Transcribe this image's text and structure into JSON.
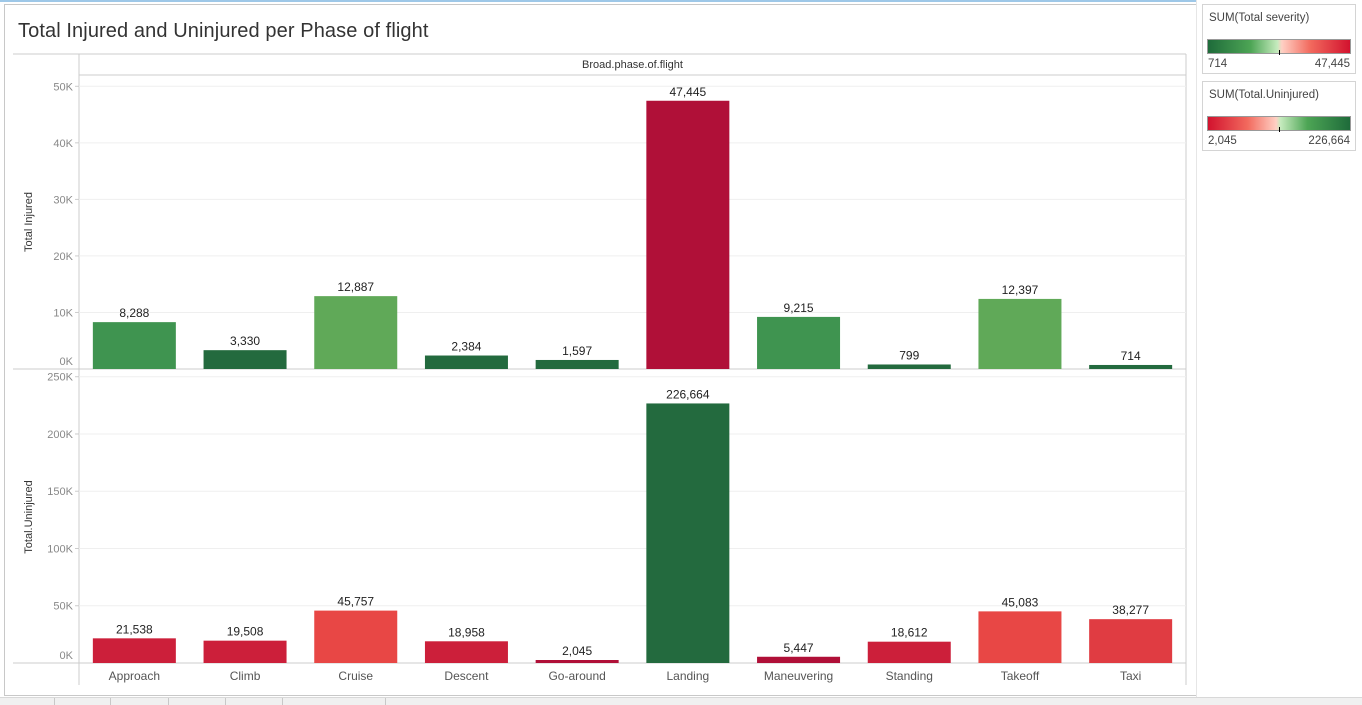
{
  "title": "Total Injured and Uninjured per Phase of flight",
  "header_label": "Broad.phase.of.flight",
  "legends": [
    {
      "title": "SUM(Total severity)",
      "min": "714",
      "max": "47,445"
    },
    {
      "title": "SUM(Total.Uninjured)",
      "min": "2,045",
      "max": "226,664"
    }
  ],
  "colors": {
    "dark_green": "#236a3e",
    "mid_green": "#3f9450",
    "light_green": "#60a958",
    "crimson": "#b01038",
    "red": "#cc1f3a",
    "light_red": "#e84745",
    "grid": "#efefef",
    "axis": "#cccccc"
  },
  "chart_data": [
    {
      "type": "bar",
      "ylabel": "Total Injured",
      "ylim": [
        0,
        52000
      ],
      "yticks": [
        0,
        10000,
        20000,
        30000,
        40000,
        50000
      ],
      "ytick_labels": [
        "0K",
        "10K",
        "20K",
        "30K",
        "40K",
        "50K"
      ],
      "categories": [
        "Approach",
        "Climb",
        "Cruise",
        "Descent",
        "Go-around",
        "Landing",
        "Maneuvering",
        "Standing",
        "Takeoff",
        "Taxi"
      ],
      "values": [
        8288,
        3330,
        12887,
        2384,
        1597,
        47445,
        9215,
        799,
        12397,
        714
      ],
      "labels": [
        "8,288",
        "3,330",
        "12,887",
        "2,384",
        "1,597",
        "47,445",
        "9,215",
        "799",
        "12,397",
        "714"
      ],
      "colors": [
        "#3f9450",
        "#236a3e",
        "#60a958",
        "#236a3e",
        "#236a3e",
        "#b01038",
        "#3f9450",
        "#236a3e",
        "#60a958",
        "#236a3e"
      ],
      "grid": true
    },
    {
      "type": "bar",
      "ylabel": "Total.Uninjured",
      "ylim": [
        0,
        255000
      ],
      "yticks": [
        0,
        50000,
        100000,
        150000,
        200000,
        250000
      ],
      "ytick_labels": [
        "0K",
        "50K",
        "100K",
        "150K",
        "200K",
        "250K"
      ],
      "categories": [
        "Approach",
        "Climb",
        "Cruise",
        "Descent",
        "Go-around",
        "Landing",
        "Maneuvering",
        "Standing",
        "Takeoff",
        "Taxi"
      ],
      "values": [
        21538,
        19508,
        45757,
        18958,
        2045,
        226664,
        5447,
        18612,
        45083,
        38277
      ],
      "labels": [
        "21,538",
        "19,508",
        "45,757",
        "18,958",
        "2,045",
        "226,664",
        "5,447",
        "18,612",
        "45,083",
        "38,277"
      ],
      "colors": [
        "#cc1f3a",
        "#cc1f3a",
        "#e84745",
        "#cc1f3a",
        "#b01038",
        "#236a3e",
        "#b01038",
        "#cc1f3a",
        "#e84745",
        "#e03c42"
      ],
      "grid": true
    }
  ]
}
